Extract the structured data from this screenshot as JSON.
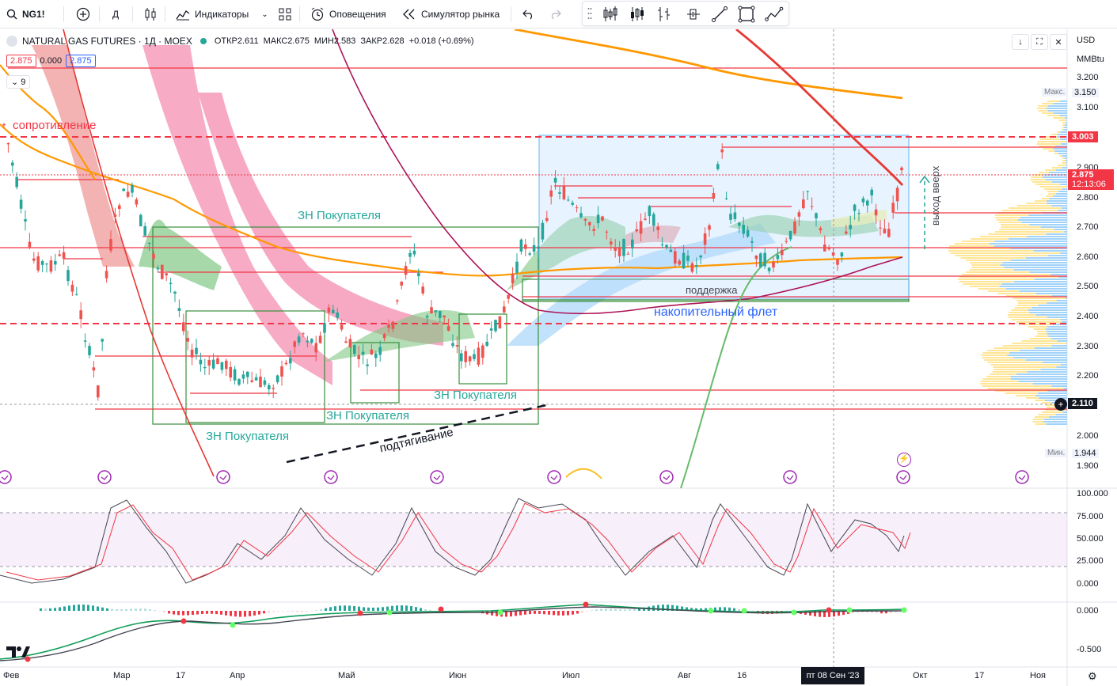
{
  "toolbar": {
    "symbol": "NG1!",
    "interval": "Д",
    "indicators_label": "Индикаторы",
    "alerts_label": "Оповещения",
    "replay_label": "Симулятор рынка"
  },
  "legend": {
    "title": "NATURAL GAS FUTURES · 1Д · MOEX",
    "open": "ОТКР2.611",
    "high": "МАКС2.675",
    "low": "МИН2.583",
    "close": "ЗАКР2.628",
    "change": "+0.018 (+0.69%)",
    "bid": "2.875",
    "spread": "0.000",
    "ask": "2.875",
    "indicator_count": "9"
  },
  "scale": {
    "currency": "USD",
    "unit": "MMBtu",
    "max_label": "Макс.",
    "max_value": "3.150",
    "min_label": "Мин.",
    "min_value": "1.944",
    "badge_resistance": "3.003",
    "badge_last": "2.875",
    "badge_timer": "12:13:06",
    "badge_crosshair": "2.110",
    "ticks": [
      "3.200",
      "3.100",
      "2.900",
      "2.800",
      "2.700",
      "2.600",
      "2.500",
      "2.400",
      "2.300",
      "2.200",
      "2.000",
      "1.900"
    ],
    "osc1_ticks": [
      "100.000",
      "75.000",
      "50.000",
      "25.000",
      "0.000"
    ],
    "osc2_ticks": [
      "0.000",
      "-0.500"
    ]
  },
  "annotations": {
    "resistance": "сопротивление",
    "buyer_zone": "ЗН Покупателя",
    "tightening": "подтягивание",
    "support": "поддержка",
    "flat": "накопительный флет",
    "exit_up": "выход вверх"
  },
  "dates": {
    "feb": "Фев",
    "mar": "Мар",
    "d17a": "17",
    "apr": "Апр",
    "may": "Май",
    "jun": "Июн",
    "jul": "Июл",
    "aug": "Авг",
    "d16": "16",
    "crosshair": "пт 08 Сен '23",
    "oct": "Окт",
    "d17b": "17",
    "nov": "Ноя"
  },
  "colors": {
    "up": "#26a69a",
    "down": "#ef5350",
    "accent": "#2962ff",
    "resistance": "#f23645"
  }
}
